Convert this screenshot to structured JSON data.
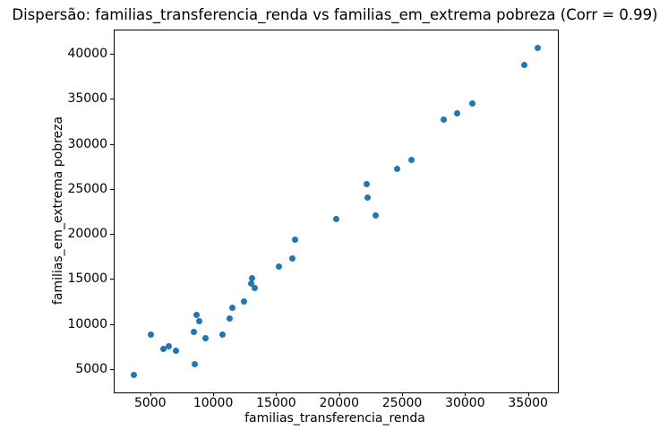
{
  "chart_data": {
    "type": "scatter",
    "title": "Dispersão: familias_transferencia_renda vs familias_em_extrema pobreza (Corr = 0.99)",
    "xlabel": "familias_transferencia_renda",
    "ylabel": "familias_em_extrema pobreza",
    "correlation": 0.99,
    "xlim": [
      2100,
      37300
    ],
    "ylim": [
      2500,
      42700
    ],
    "xticks": [
      5000,
      10000,
      15000,
      20000,
      25000,
      30000,
      35000
    ],
    "yticks": [
      5000,
      10000,
      15000,
      20000,
      25000,
      30000,
      35000,
      40000
    ],
    "grid": false,
    "legend": null,
    "marker_color": "#1f77b4",
    "marker_diameter_px": 7,
    "points": [
      [
        3620,
        4430
      ],
      [
        4980,
        8910
      ],
      [
        5950,
        7290
      ],
      [
        6420,
        7620
      ],
      [
        6940,
        7120
      ],
      [
        8380,
        9180
      ],
      [
        8480,
        5600
      ],
      [
        8620,
        11100
      ],
      [
        8840,
        10420
      ],
      [
        9320,
        8530
      ],
      [
        10680,
        8910
      ],
      [
        11270,
        10670
      ],
      [
        11440,
        11930
      ],
      [
        12340,
        12560
      ],
      [
        12960,
        14580
      ],
      [
        13030,
        15210
      ],
      [
        13260,
        14080
      ],
      [
        15180,
        16460
      ],
      [
        16230,
        17330
      ],
      [
        16410,
        19450
      ],
      [
        19690,
        21750
      ],
      [
        22100,
        25610
      ],
      [
        22220,
        24160
      ],
      [
        22860,
        22200
      ],
      [
        24510,
        27300
      ],
      [
        25650,
        28340
      ],
      [
        28210,
        32810
      ],
      [
        29320,
        33540
      ],
      [
        30510,
        34600
      ],
      [
        34650,
        38910
      ],
      [
        35720,
        40800
      ]
    ]
  }
}
